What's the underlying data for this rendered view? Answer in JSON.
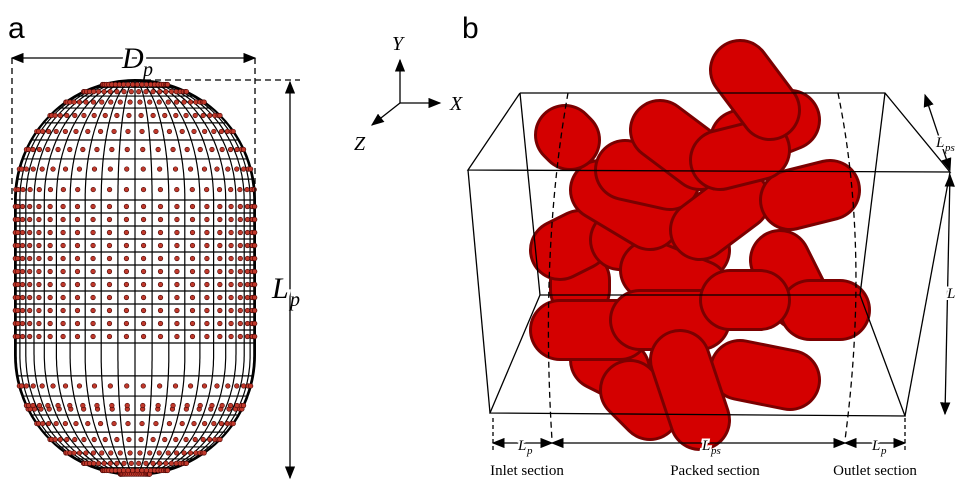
{
  "panel_a": {
    "label": "a",
    "diameter": {
      "symbol": "D",
      "subscript": "p"
    },
    "length": {
      "symbol": "L",
      "subscript": "p"
    }
  },
  "axes": {
    "y": "Y",
    "x": "X",
    "z": "Z"
  },
  "panel_b": {
    "label": "b",
    "depth": {
      "symbol": "L",
      "subscript": "ps"
    },
    "height": {
      "symbol": "L"
    },
    "sections": [
      {
        "name": "Inlet section",
        "length": {
          "symbol": "L",
          "subscript": "p"
        }
      },
      {
        "name": "Packed section",
        "length": {
          "symbol": "L",
          "subscript": "ps"
        }
      },
      {
        "name": "Outlet section",
        "length": {
          "symbol": "L",
          "subscript": "p"
        }
      }
    ]
  }
}
